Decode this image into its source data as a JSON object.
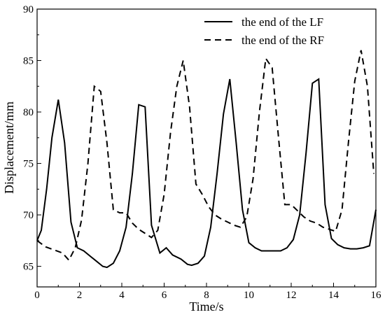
{
  "chart_data": {
    "type": "line",
    "xlabel": "Time/s",
    "ylabel": "Displacement/mm",
    "xlim": [
      0,
      16
    ],
    "ylim": [
      63,
      90
    ],
    "xticks": [
      0,
      2,
      4,
      6,
      8,
      10,
      12,
      14,
      16
    ],
    "yticks": [
      65,
      70,
      75,
      80,
      85,
      90
    ],
    "grid": false,
    "legend": "top-right",
    "series": [
      {
        "name": "the end of the LF",
        "style": "solid",
        "color": "#000000",
        "x": [
          0,
          0.2,
          0.45,
          0.7,
          1.0,
          1.3,
          1.6,
          1.9,
          2.2,
          2.5,
          2.8,
          3.1,
          3.3,
          3.6,
          3.9,
          4.2,
          4.5,
          4.8,
          5.1,
          5.4,
          5.8,
          6.1,
          6.4,
          6.8,
          7.1,
          7.3,
          7.6,
          7.9,
          8.2,
          8.5,
          8.8,
          9.1,
          9.4,
          9.7,
          10.0,
          10.3,
          10.6,
          10.9,
          11.2,
          11.5,
          11.8,
          12.1,
          12.4,
          12.7,
          13.0,
          13.3,
          13.6,
          13.9,
          14.2,
          14.5,
          14.8,
          15.1,
          15.4,
          15.7,
          16.0
        ],
        "y": [
          67.5,
          68.5,
          72.5,
          77.5,
          81.2,
          77.0,
          69.3,
          66.8,
          66.5,
          66.0,
          65.5,
          65.0,
          64.9,
          65.3,
          66.5,
          68.8,
          74.0,
          80.7,
          80.5,
          69.0,
          66.3,
          66.8,
          66.1,
          65.7,
          65.2,
          65.1,
          65.3,
          66.0,
          68.8,
          74.0,
          79.8,
          83.2,
          77.0,
          70.5,
          67.3,
          66.8,
          66.5,
          66.5,
          66.5,
          66.5,
          66.8,
          67.6,
          70.0,
          76.0,
          82.8,
          83.2,
          71.0,
          67.7,
          67.1,
          66.8,
          66.7,
          66.7,
          66.8,
          67.0,
          70.5
        ]
      },
      {
        "name": "the end of the RF",
        "style": "dashed",
        "color": "#000000",
        "x": [
          0,
          0.4,
          0.8,
          1.2,
          1.5,
          1.8,
          2.1,
          2.4,
          2.7,
          3.0,
          3.3,
          3.6,
          3.9,
          4.2,
          4.5,
          4.8,
          5.1,
          5.4,
          5.7,
          6.0,
          6.3,
          6.6,
          6.9,
          7.2,
          7.5,
          7.8,
          8.1,
          8.4,
          8.7,
          9.0,
          9.3,
          9.6,
          9.9,
          10.2,
          10.5,
          10.8,
          11.1,
          11.4,
          11.7,
          12.0,
          12.3,
          12.6,
          12.9,
          13.2,
          13.5,
          13.8,
          14.1,
          14.4,
          14.7,
          15.0,
          15.3,
          15.6,
          15.9
        ],
        "y": [
          67.5,
          66.9,
          66.6,
          66.3,
          65.6,
          66.8,
          69.5,
          75.0,
          82.5,
          82.0,
          77.0,
          70.5,
          70.2,
          70.2,
          69.2,
          68.6,
          68.2,
          67.8,
          68.5,
          72.0,
          78.0,
          82.5,
          85.0,
          80.5,
          73.0,
          72.0,
          70.8,
          70.0,
          69.6,
          69.3,
          69.0,
          68.8,
          69.8,
          73.5,
          80.0,
          85.2,
          84.3,
          77.5,
          71.0,
          71.0,
          70.4,
          69.8,
          69.4,
          69.2,
          68.8,
          68.6,
          68.4,
          70.5,
          77.0,
          83.0,
          86.0,
          82.5,
          74.0
        ]
      }
    ]
  }
}
